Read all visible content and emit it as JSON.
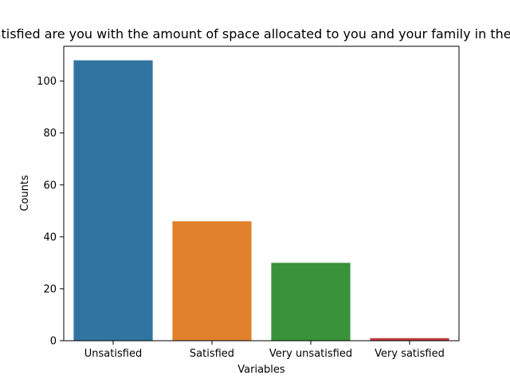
{
  "chart_data": {
    "type": "bar",
    "title": "How satisfied are you with the amount of space allocated to you and your family in the shelter?",
    "xlabel": "Variables",
    "ylabel": "Counts",
    "categories": [
      "Unsatisfied",
      "Satisfied",
      "Very unsatisfied",
      "Very satisfied"
    ],
    "values": [
      108,
      46,
      30,
      1
    ],
    "colors": [
      "#3274a1",
      "#e1812c",
      "#3a923a",
      "#c03d3e"
    ],
    "ylim": [
      0,
      113.4
    ],
    "yticks": [
      0,
      20,
      40,
      60,
      80,
      100
    ],
    "grid": false,
    "legend": "none"
  }
}
